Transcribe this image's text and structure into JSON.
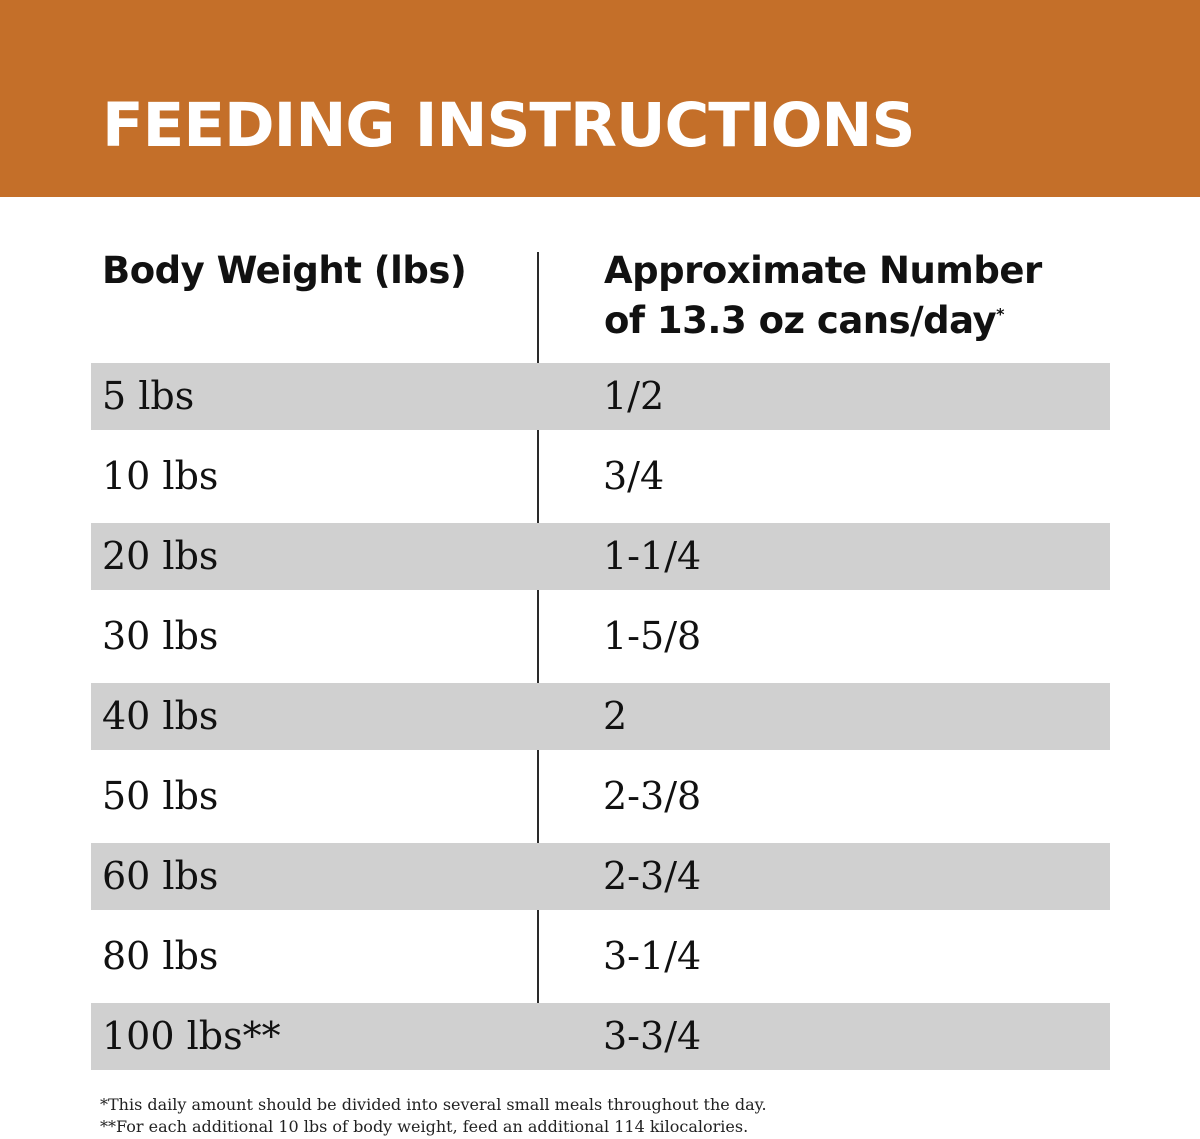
{
  "banner": {
    "title": "FEEDING INSTRUCTIONS",
    "color": "#c46f29"
  },
  "table": {
    "headers": {
      "weight": "Body Weight (lbs)",
      "cans": "Approximate Number of 13.3 oz cans/day",
      "cans_marker": "*"
    },
    "shade_color": "#d0d0d0",
    "rows": [
      {
        "weight": "5 lbs",
        "cans": "1/2",
        "shaded": true
      },
      {
        "weight": "10 lbs",
        "cans": "3/4",
        "shaded": false
      },
      {
        "weight": "20 lbs",
        "cans": "1-1/4",
        "shaded": true
      },
      {
        "weight": "30 lbs",
        "cans": "1-5/8",
        "shaded": false
      },
      {
        "weight": "40 lbs",
        "cans": "2",
        "shaded": true
      },
      {
        "weight": "50 lbs",
        "cans": "2-3/8",
        "shaded": false
      },
      {
        "weight": "60 lbs",
        "cans": "2-3/4",
        "shaded": true
      },
      {
        "weight": "80 lbs",
        "cans": "3-1/4",
        "shaded": false
      },
      {
        "weight": "100 lbs**",
        "cans": "3-3/4",
        "shaded": true
      }
    ]
  },
  "footnotes": [
    "*This daily amount should be divided into several small meals throughout the day.",
    "**For each additional 10 lbs of body weight, feed an additional 114 kilocalories."
  ]
}
